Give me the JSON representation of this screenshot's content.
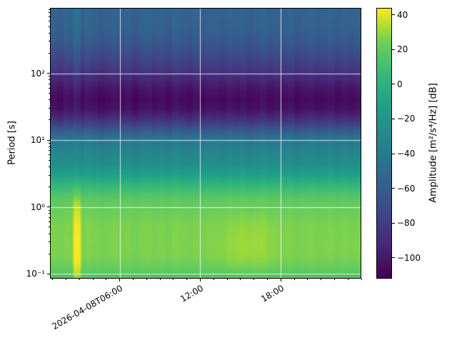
{
  "figure": {
    "background_color": "#ffffff",
    "axes_frame_color": "#000000",
    "grid_color": "rgba(255,255,255,0.8)"
  },
  "chart_data": {
    "type": "heatmap",
    "subtype": "seismic-spectrogram",
    "title": "",
    "xlabel": "",
    "ylabel": "Period [s]",
    "colorbar_label": "Amplitude [m²/s⁴/Hz] [dB]",
    "x_axis": {
      "kind": "time",
      "date": "2026-04-08",
      "start_hour": 0.8,
      "end_hour": 24.0,
      "major_ticks": [
        {
          "hour": 6,
          "label": "2026-04-08T06:00"
        },
        {
          "hour": 12,
          "label": "12:00"
        },
        {
          "hour": 18,
          "label": "18:00"
        }
      ],
      "minor_tick_every_hours": 1
    },
    "y_axis": {
      "scale": "log",
      "min": 0.085,
      "max": 950,
      "unit": "s",
      "major_ticks": [
        {
          "value": 100,
          "label": "10²"
        },
        {
          "value": 10,
          "label": "10¹"
        },
        {
          "value": 1,
          "label": "10⁰"
        },
        {
          "value": 0.1,
          "label": "10⁻¹"
        }
      ]
    },
    "color_axis": {
      "colormap": "viridis",
      "vmin": -112,
      "vmax": 44,
      "ticks": [
        {
          "value": 40,
          "label": "40"
        },
        {
          "value": 20,
          "label": "20"
        },
        {
          "value": 0,
          "label": "0"
        },
        {
          "value": -20,
          "label": "−20"
        },
        {
          "value": -40,
          "label": "−40"
        },
        {
          "value": -60,
          "label": "−60"
        },
        {
          "value": -80,
          "label": "−80"
        },
        {
          "value": -100,
          "label": "−100"
        }
      ]
    },
    "grid": {
      "shown": true,
      "on_major_ticks": true
    },
    "background_spectrum_db_by_period_s": [
      [
        0.085,
        13
      ],
      [
        0.1,
        17
      ],
      [
        0.13,
        23
      ],
      [
        0.18,
        26
      ],
      [
        0.3,
        26.5
      ],
      [
        0.55,
        26
      ],
      [
        0.9,
        23
      ],
      [
        1.2,
        20
      ],
      [
        1.6,
        13
      ],
      [
        2.2,
        2
      ],
      [
        3.0,
        -13
      ],
      [
        4.5,
        -26
      ],
      [
        7,
        -33
      ],
      [
        10,
        -42
      ],
      [
        13,
        -58
      ],
      [
        17,
        -76
      ],
      [
        22,
        -92
      ],
      [
        30,
        -104
      ],
      [
        40,
        -107
      ],
      [
        55,
        -103
      ],
      [
        70,
        -97
      ],
      [
        90,
        -90
      ],
      [
        120,
        -82
      ],
      [
        180,
        -73
      ],
      [
        280,
        -64
      ],
      [
        450,
        -58
      ],
      [
        950,
        -56
      ]
    ],
    "column_offsets_db": [
      1.2,
      -1.8,
      2.6,
      0.4,
      -2.2,
      3.1,
      0.8,
      -2.6,
      -0.4,
      2.2,
      -1.2,
      1.6,
      -3.0,
      0.6,
      2.4,
      -0.8,
      1.2,
      -2.2,
      2.8,
      0.2,
      -1.6,
      2.0,
      -2.4,
      1.0,
      0.6,
      -1.2,
      2.2,
      -0.6,
      1.4,
      -2.0,
      0.2,
      2.6,
      -1.4,
      1.0,
      -0.8,
      1.8,
      -2.6,
      0.4,
      1.6,
      -1.0,
      -0.2,
      2.0,
      -1.6,
      1.2,
      -0.6,
      1.4
    ],
    "column_noise_scale_by_period_s": [
      [
        0.085,
        0.25
      ],
      [
        1.5,
        0.3
      ],
      [
        4,
        0.55
      ],
      [
        8,
        0.8
      ],
      [
        12,
        1.0
      ],
      [
        950,
        1.0
      ]
    ],
    "events": [
      {
        "name": "broadband-transient",
        "shape": "box",
        "t_start_hour": 2.45,
        "t_end_hour": 3.2,
        "feather_hours": 0.18,
        "boost_db_by_period_s": [
          [
            0.085,
            17
          ],
          [
            0.15,
            18
          ],
          [
            0.5,
            17
          ],
          [
            1.0,
            14
          ],
          [
            1.6,
            7
          ],
          [
            3,
            3
          ],
          [
            8,
            3
          ],
          [
            20,
            5
          ],
          [
            60,
            8
          ],
          [
            150,
            11
          ],
          [
            900,
            10
          ]
        ]
      },
      {
        "name": "afternoon-noise-patch",
        "shape": "gaussian",
        "t_center_hour": 15.6,
        "t_sigma_hours": 1.4,
        "log10_period_center": -0.6,
        "log10_period_sigma": 0.38,
        "amp_db": 4.5
      }
    ],
    "viridis_stops": [
      [
        0.0,
        68,
        1,
        84
      ],
      [
        0.125,
        72,
        40,
        120
      ],
      [
        0.25,
        62,
        73,
        137
      ],
      [
        0.375,
        49,
        104,
        142
      ],
      [
        0.5,
        38,
        130,
        142
      ],
      [
        0.625,
        31,
        158,
        137
      ],
      [
        0.75,
        53,
        183,
        121
      ],
      [
        0.875,
        110,
        206,
        88
      ],
      [
        0.9375,
        181,
        222,
        43
      ],
      [
        1.0,
        253,
        231,
        37
      ]
    ]
  }
}
